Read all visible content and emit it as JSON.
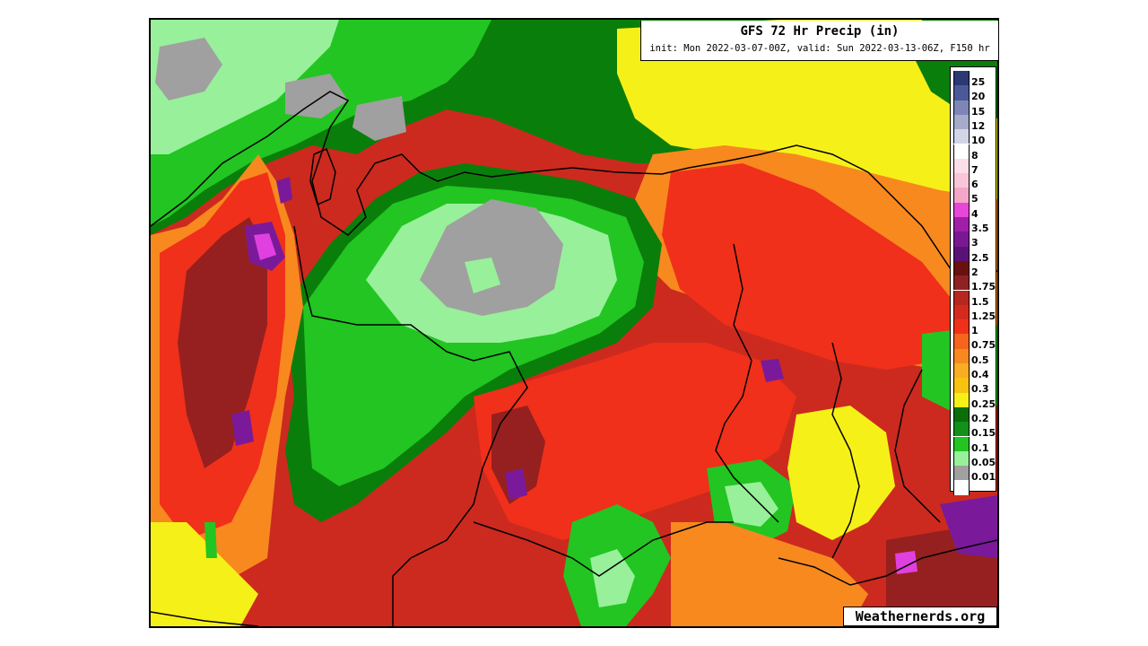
{
  "map": {
    "title": "GFS 72 Hr Precip (in)",
    "subtitle": "init: Mon 2022-03-07-00Z, valid: Sun 2022-03-13-06Z, F150 hr",
    "watermark": "Weathernerds.org",
    "colors": {
      "background_heavy": "#cc2a1f",
      "dry_gray": "#a0a0a0",
      "light_green": "#98f09a",
      "green": "#22c522",
      "dark_green": "#0a7e0a",
      "yellow": "#f6f019",
      "gold": "#f7c30f",
      "orange": "#f7891f",
      "red": "#f0301a",
      "dark_red": "#962020",
      "purple": "#7a1a9a",
      "magenta": "#e040e0"
    },
    "legend": [
      {
        "label": "25",
        "color": "#2c3872"
      },
      {
        "label": "20",
        "color": "#4a5a98"
      },
      {
        "label": "15",
        "color": "#7d86b6"
      },
      {
        "label": "12",
        "color": "#a6abcb"
      },
      {
        "label": "10",
        "color": "#d2d5e6"
      },
      {
        "label": "8",
        "color": "#ffffff"
      },
      {
        "label": "7",
        "color": "#fcdee8"
      },
      {
        "label": "6",
        "color": "#f8c6d8"
      },
      {
        "label": "5",
        "color": "#f3a6c8"
      },
      {
        "label": "4",
        "color": "#e846d8"
      },
      {
        "label": "3.5",
        "color": "#a01ea8"
      },
      {
        "label": "3",
        "color": "#7a1894"
      },
      {
        "label": "2.5",
        "color": "#5a1276"
      },
      {
        "label": "2",
        "color": "#6a1010"
      },
      {
        "label": "1.75",
        "color": "#8e2222"
      },
      {
        "label": "1.5",
        "color": "#b82620"
      },
      {
        "label": "1.25",
        "color": "#d42a1e"
      },
      {
        "label": "1",
        "color": "#f0301a"
      },
      {
        "label": "0.75",
        "color": "#f5651c"
      },
      {
        "label": "0.5",
        "color": "#f7891f"
      },
      {
        "label": "0.4",
        "color": "#f9ad22"
      },
      {
        "label": "0.3",
        "color": "#f7c30f"
      },
      {
        "label": "0.25",
        "color": "#f6f019"
      },
      {
        "label": "0.2",
        "color": "#0a6e0a"
      },
      {
        "label": "0.15",
        "color": "#12901a"
      },
      {
        "label": "0.1",
        "color": "#22c522"
      },
      {
        "label": "0.05",
        "color": "#98f09a"
      },
      {
        "label": "0.01",
        "color": "#a0a0a0"
      },
      {
        "label": "",
        "color": "#ffffff"
      }
    ]
  }
}
